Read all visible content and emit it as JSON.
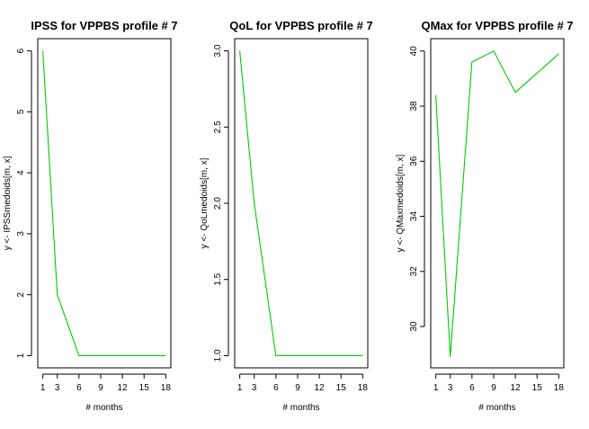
{
  "chart_data": [
    {
      "type": "line",
      "title": "IPSS for VPPBS profile # 7",
      "xlabel": "# months",
      "ylabel": "y <- IPSSmedoids[m, x]",
      "x": [
        1,
        3,
        6,
        9,
        12,
        15,
        18
      ],
      "series": [
        {
          "values": [
            6,
            2,
            1,
            1,
            1,
            1,
            1
          ],
          "color": "#00cc00"
        }
      ],
      "xticks": [
        "1",
        "3",
        "6",
        "9",
        "12",
        "15",
        "18"
      ],
      "yticks": [
        "1",
        "2",
        "3",
        "4",
        "5",
        "6"
      ],
      "xlim": [
        0.3,
        18.7
      ],
      "ylim": [
        0.8,
        6.2
      ],
      "grid": false
    },
    {
      "type": "line",
      "title": "QoL for VPPBS profile # 7",
      "xlabel": "# months",
      "ylabel": "y <- QoLmedoids[m, x]",
      "x": [
        1,
        3,
        6,
        9,
        12,
        15,
        18
      ],
      "series": [
        {
          "values": [
            3.0,
            2.0,
            1.0,
            1.0,
            1.0,
            1.0,
            1.0
          ],
          "color": "#00cc00"
        }
      ],
      "xticks": [
        "1",
        "3",
        "6",
        "9",
        "12",
        "15",
        "18"
      ],
      "yticks": [
        "1.0",
        "1.5",
        "2.0",
        "2.5",
        "3.0"
      ],
      "xlim": [
        0.3,
        18.7
      ],
      "ylim": [
        0.92,
        3.08
      ],
      "grid": false
    },
    {
      "type": "line",
      "title": "QMax for VPPBS profile # 7",
      "xlabel": "# months",
      "ylabel": "y <- QMaxmedoids[m, x]",
      "x": [
        1,
        3,
        6,
        9,
        12,
        15,
        18
      ],
      "series": [
        {
          "values": [
            38.4,
            28.9,
            39.6,
            40.0,
            38.5,
            39.2,
            39.9
          ],
          "color": "#00cc00"
        }
      ],
      "xticks": [
        "1",
        "3",
        "6",
        "9",
        "12",
        "15",
        "18"
      ],
      "yticks": [
        "30",
        "32",
        "34",
        "36",
        "38",
        "40"
      ],
      "xlim": [
        0.3,
        18.7
      ],
      "ylim": [
        28.5,
        40.45
      ],
      "grid": false
    }
  ]
}
